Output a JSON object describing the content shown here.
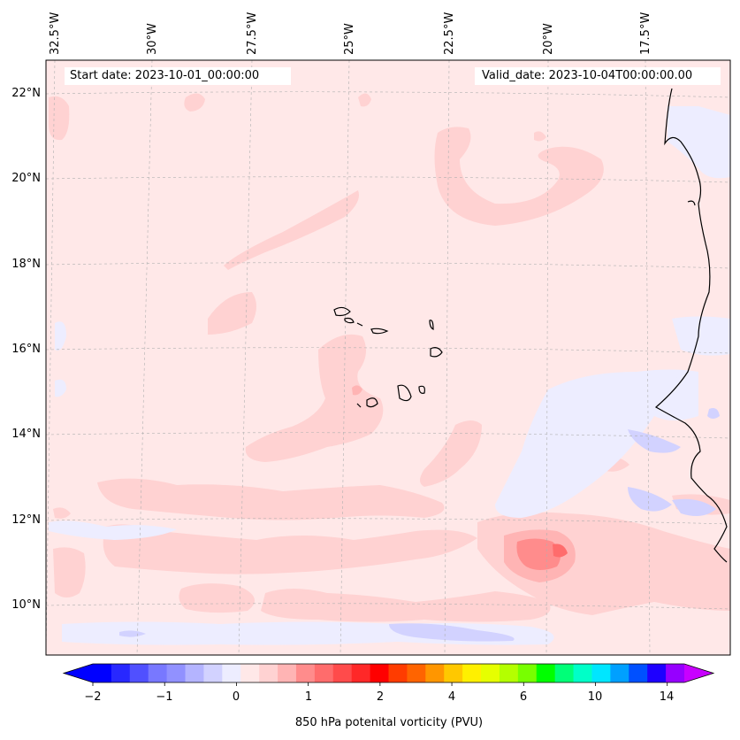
{
  "map": {
    "start_date_text": "Start date: 2023-10-01_00:00:00",
    "valid_date_text": "Valid_date: 2023-10-04T00:00:00.00",
    "lon_labels": [
      "32.5°W",
      "30°W",
      "27.5°W",
      "25°W",
      "22.5°W",
      "20°W",
      "17.5°W"
    ],
    "lat_labels": [
      "22°N",
      "20°N",
      "18°N",
      "16°N",
      "14°N",
      "12°N",
      "10°N"
    ],
    "background_color": "#ffe8e8",
    "coastline_color": "#000000"
  },
  "colorbar": {
    "title": "850 hPa potenital vorticity (PVU)",
    "tick_labels": [
      "−2",
      "−1",
      "0",
      "1",
      "2",
      "4",
      "6",
      "10",
      "14"
    ],
    "colors": [
      "#0000ff",
      "#2828ff",
      "#5050ff",
      "#7878ff",
      "#9191ff",
      "#b4b4ff",
      "#d2d2ff",
      "#ededff",
      "#ffe8e8",
      "#ffd2d2",
      "#ffb4b4",
      "#ff8c8c",
      "#ff6c6c",
      "#ff4b4b",
      "#ff2828",
      "#ff0000",
      "#ff3c00",
      "#ff6400",
      "#ff9600",
      "#ffc800",
      "#fff000",
      "#e6ff00",
      "#b4ff00",
      "#78ff00",
      "#00ff00",
      "#00ff78",
      "#00ffc8",
      "#00e6ff",
      "#00a0ff",
      "#0050ff",
      "#1e00ff",
      "#9600ff"
    ],
    "under_color": "#0000ff",
    "over_color": "#c800ff"
  }
}
